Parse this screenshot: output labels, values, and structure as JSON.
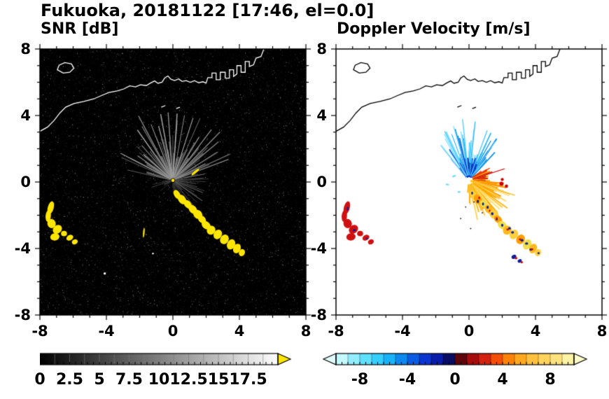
{
  "title": "Fukuoka, 20181122 [17:46, el=0.0]",
  "panels": {
    "snr_label": "SNR [dB]",
    "doppler_label": "Doppler Velocity [m/s]"
  },
  "chart_data": {
    "type": "heatmap",
    "plot_kind": "radar_ppi_pair",
    "title": "Fukuoka, 20181122 [17:46, el=0.0]",
    "radar_center": [
      0,
      0.1
    ],
    "subplots": [
      {
        "title": "SNR [dB]",
        "xlim": [
          -8,
          8
        ],
        "ylim": [
          -8,
          8
        ],
        "xticks": [
          -8,
          -4,
          0,
          4,
          8
        ],
        "yticks": [
          -8,
          -4,
          0,
          4,
          8
        ],
        "minor_tick_step": 1,
        "background": "#000000",
        "colorbar": {
          "range": [
            0,
            20
          ],
          "ticks": [
            0,
            2.5,
            5,
            7.5,
            10,
            12.5,
            15,
            17.5
          ],
          "palette": "grayscale",
          "over_arrow_color": "#ffe600"
        }
      },
      {
        "title": "Doppler Velocity [m/s]",
        "xlim": [
          -8,
          8
        ],
        "ylim": [
          -8,
          8
        ],
        "xticks": [
          -8,
          -4,
          0,
          4,
          8
        ],
        "yticks": [
          -8,
          -4,
          0,
          4,
          8
        ],
        "minor_tick_step": 1,
        "background": "#ffffff",
        "colorbar": {
          "range": [
            -10,
            10
          ],
          "ticks": [
            -8,
            -4,
            0,
            4,
            8
          ],
          "under_arrow_color": "#e2ffff",
          "over_arrow_color": "#ffffcc",
          "stops": [
            [
              -10,
              "#dcffff"
            ],
            [
              -9,
              "#aaf4ff"
            ],
            [
              -7.5,
              "#5fe0ff"
            ],
            [
              -6,
              "#22c4ff"
            ],
            [
              -5,
              "#0f9ff2"
            ],
            [
              -4,
              "#0b72e8"
            ],
            [
              -3,
              "#0a46dc"
            ],
            [
              -2,
              "#0a24c0"
            ],
            [
              -1,
              "#081694"
            ],
            [
              -0.3,
              "#0a0a50"
            ],
            [
              0.3,
              "#4c0508"
            ],
            [
              1,
              "#8c0a0a"
            ],
            [
              2,
              "#c01010"
            ],
            [
              3,
              "#e83410"
            ],
            [
              4,
              "#ff6a00"
            ],
            [
              5,
              "#ff9a10"
            ],
            [
              6,
              "#ffb62e"
            ],
            [
              7.5,
              "#ffd35c"
            ],
            [
              9,
              "#ffe98f"
            ],
            [
              10,
              "#fdfdba"
            ]
          ]
        }
      }
    ],
    "coastline": {
      "main": [
        [
          -8,
          3.05
        ],
        [
          -7.55,
          3.3
        ],
        [
          -7.15,
          3.7
        ],
        [
          -6.8,
          4.15
        ],
        [
          -6.45,
          4.5
        ],
        [
          -5.95,
          4.72
        ],
        [
          -5.35,
          4.85
        ],
        [
          -4.75,
          5.0
        ],
        [
          -4.3,
          5.2
        ],
        [
          -3.85,
          5.38
        ],
        [
          -3.35,
          5.48
        ],
        [
          -2.95,
          5.6
        ],
        [
          -2.6,
          5.78
        ],
        [
          -2.25,
          5.72
        ],
        [
          -1.95,
          5.85
        ],
        [
          -1.6,
          5.8
        ],
        [
          -1.35,
          5.95
        ],
        [
          -1.1,
          6.08
        ],
        [
          -0.9,
          5.94
        ],
        [
          -0.65,
          6.0
        ],
        [
          -0.5,
          6.25
        ],
        [
          -0.3,
          6.38
        ],
        [
          -0.12,
          6.18
        ],
        [
          0.1,
          6.1
        ],
        [
          0.35,
          6.2
        ],
        [
          0.55,
          6.05
        ],
        [
          0.8,
          6.1
        ],
        [
          1.05,
          6.0
        ],
        [
          1.3,
          6.1
        ],
        [
          1.55,
          5.97
        ],
        [
          1.8,
          6.03
        ],
        [
          2.0,
          5.95
        ],
        [
          2.1,
          6.28
        ],
        [
          2.35,
          6.28
        ],
        [
          2.35,
          6.55
        ],
        [
          2.6,
          6.55
        ],
        [
          2.6,
          6.15
        ],
        [
          2.85,
          6.15
        ],
        [
          2.85,
          6.6
        ],
        [
          3.15,
          6.6
        ],
        [
          3.15,
          6.25
        ],
        [
          3.4,
          6.25
        ],
        [
          3.4,
          6.75
        ],
        [
          3.65,
          6.75
        ],
        [
          3.65,
          6.35
        ],
        [
          3.85,
          6.5
        ],
        [
          3.85,
          7.0
        ],
        [
          4.1,
          7.0
        ],
        [
          4.1,
          6.6
        ],
        [
          4.35,
          6.6
        ],
        [
          4.35,
          7.25
        ],
        [
          4.6,
          7.25
        ],
        [
          4.6,
          6.95
        ],
        [
          4.85,
          7.05
        ],
        [
          5.0,
          7.45
        ],
        [
          5.3,
          7.55
        ],
        [
          5.45,
          7.95
        ],
        [
          5.55,
          8.1
        ]
      ],
      "island": [
        [
          -6.95,
          6.75
        ],
        [
          -6.6,
          6.55
        ],
        [
          -6.2,
          6.6
        ],
        [
          -5.95,
          6.85
        ],
        [
          -6.1,
          7.1
        ],
        [
          -6.5,
          7.18
        ],
        [
          -6.85,
          7.02
        ]
      ],
      "islets": [
        [
          [
            -0.7,
            4.5
          ],
          [
            -0.45,
            4.6
          ]
        ],
        [
          [
            0.2,
            4.42
          ],
          [
            0.42,
            4.5
          ]
        ]
      ]
    },
    "snr": {
      "echo_color": "#ffe600",
      "fans": [
        {
          "a0": -78,
          "a1": 78,
          "n": 46,
          "r0": 0.15,
          "rmin": 1.1,
          "rmax": 3.8,
          "g0": 60,
          "g1": 140,
          "w0": 0.8,
          "w1": 1.6
        },
        {
          "a0": -62,
          "a1": 62,
          "n": 20,
          "r0": 0.15,
          "rmin": 2.2,
          "rmax": 4.4,
          "g0": 110,
          "g1": 185,
          "w0": 0.9,
          "w1": 1.5
        },
        {
          "a0": 80,
          "a1": 140,
          "n": 14,
          "r0": 0.15,
          "rmin": 0.7,
          "rmax": 2.2,
          "g0": 55,
          "g1": 115,
          "w0": 0.8,
          "w1": 1.3
        },
        {
          "a0": -128,
          "a1": -96,
          "n": 6,
          "r0": 0.15,
          "rmin": 0.5,
          "rmax": 1.4,
          "g0": 45,
          "g1": 85,
          "w0": 0.8,
          "w1": 1.1
        },
        {
          "a0": 142,
          "a1": 186,
          "n": 7,
          "r0": 0.15,
          "rmin": 0.4,
          "rmax": 1.3,
          "g0": 45,
          "g1": 85,
          "w0": 0.8,
          "w1": 1.1
        }
      ],
      "arc_blobs": [
        {
          "x": 0.25,
          "y": -0.75,
          "rx": 0.18,
          "ry": 0.3,
          "rot": -30
        },
        {
          "x": 0.55,
          "y": -1.05,
          "rx": 0.22,
          "ry": 0.32,
          "rot": -35
        },
        {
          "x": 0.9,
          "y": -1.35,
          "rx": 0.2,
          "ry": 0.3,
          "rot": -40
        },
        {
          "x": 1.2,
          "y": -1.65,
          "rx": 0.22,
          "ry": 0.3,
          "rot": -40
        },
        {
          "x": 1.5,
          "y": -1.95,
          "rx": 0.25,
          "ry": 0.3,
          "rot": -45
        },
        {
          "x": 1.75,
          "y": -2.25,
          "rx": 0.2,
          "ry": 0.28,
          "rot": -45
        },
        {
          "x": 2.0,
          "y": -2.6,
          "rx": 0.22,
          "ry": 0.3,
          "rot": -50
        },
        {
          "x": 2.3,
          "y": -2.9,
          "rx": 0.28,
          "ry": 0.25,
          "rot": -55
        },
        {
          "x": 2.7,
          "y": -3.15,
          "rx": 0.3,
          "ry": 0.24,
          "rot": -60
        },
        {
          "x": 3.1,
          "y": -3.45,
          "rx": 0.3,
          "ry": 0.25,
          "rot": -60
        },
        {
          "x": 3.5,
          "y": -3.75,
          "rx": 0.32,
          "ry": 0.24,
          "rot": -65
        },
        {
          "x": 3.85,
          "y": -4.0,
          "rx": 0.3,
          "ry": 0.22,
          "rot": -65
        },
        {
          "x": 4.15,
          "y": -4.25,
          "rx": 0.22,
          "ry": 0.18,
          "rot": -65
        }
      ],
      "west_blobs": [
        {
          "x": -7.35,
          "y": -1.55,
          "rx": 0.18,
          "ry": 0.4,
          "rot": 15
        },
        {
          "x": -7.5,
          "y": -2.05,
          "rx": 0.16,
          "ry": 0.35,
          "rot": 5
        },
        {
          "x": -7.3,
          "y": -2.5,
          "rx": 0.25,
          "ry": 0.28,
          "rot": -20
        },
        {
          "x": -6.95,
          "y": -2.85,
          "rx": 0.3,
          "ry": 0.24,
          "rot": -40
        },
        {
          "x": -7.1,
          "y": -3.3,
          "rx": 0.28,
          "ry": 0.22,
          "rot": -10
        },
        {
          "x": -6.55,
          "y": -3.1,
          "rx": 0.18,
          "ry": 0.16,
          "rot": 0
        },
        {
          "x": -6.2,
          "y": -3.35,
          "rx": 0.22,
          "ry": 0.16,
          "rot": -30
        },
        {
          "x": -5.9,
          "y": -3.6,
          "rx": 0.18,
          "ry": 0.14,
          "rot": -30
        }
      ],
      "extra_blobs": [
        {
          "x": 1.35,
          "y": 0.6,
          "rx": 0.3,
          "ry": 0.07,
          "rot": -40
        },
        {
          "x": -1.75,
          "y": -3.05,
          "rx": 0.05,
          "ry": 0.3,
          "rot": 5
        }
      ],
      "white_specks": [
        {
          "x": -4.1,
          "y": -5.5,
          "rx": 0.07,
          "ry": 0.07,
          "rot": 0
        },
        {
          "x": -1.2,
          "y": -4.3,
          "rx": 0.05,
          "ry": 0.05,
          "rot": 0
        }
      ]
    },
    "doppler": {
      "fans": [
        {
          "a0": -42,
          "a1": 42,
          "n": 60,
          "r0": 0.25,
          "rmin": 0.7,
          "rmax": 3.3,
          "w0": 0.9,
          "w1": 2.0,
          "colors": [
            "#8ae6ff",
            "#55d4ff",
            "#2bb8f5",
            "#0f8fe8",
            "#0c58d8",
            "#7ad9ff"
          ]
        },
        {
          "a0": -28,
          "a1": 32,
          "n": 34,
          "r0": 0.2,
          "rmin": 0.3,
          "rmax": 1.5,
          "w0": 1.4,
          "w1": 2.8,
          "colors": [
            "#0a34c8",
            "#0a1fa0",
            "#1246e0",
            "#0c6ae0"
          ]
        },
        {
          "a0": 55,
          "a1": 98,
          "n": 26,
          "r0": 0.25,
          "rmin": 0.35,
          "rmax": 1.5,
          "w0": 1.4,
          "w1": 2.8,
          "colors": [
            "#ff8a00",
            "#ff6a00",
            "#f04000",
            "#d02000",
            "#ffae1e"
          ]
        },
        {
          "a0": 96,
          "a1": 168,
          "n": 64,
          "r0": 0.25,
          "rmin": 0.7,
          "rmax": 2.6,
          "w0": 1.3,
          "w1": 2.4,
          "colors": [
            "#ffd24d",
            "#ffc024",
            "#ffab00",
            "#ffe37a",
            "#ff9400"
          ]
        },
        {
          "a0": 150,
          "a1": 188,
          "n": 16,
          "r0": 0.25,
          "rmin": 0.4,
          "rmax": 1.5,
          "w0": 1.1,
          "w1": 1.8,
          "colors": [
            "#ffd86a",
            "#ffb000"
          ]
        }
      ],
      "long_streaks": [
        {
          "a": -6,
          "r": 3.7,
          "c": "#55ccff",
          "w": 1.4
        },
        {
          "a": 6,
          "r": 3.55,
          "c": "#2fb9ff",
          "w": 1.4
        },
        {
          "a": -16,
          "r": 3.4,
          "c": "#7adcff",
          "w": 1.2
        },
        {
          "a": 20,
          "r": 3.2,
          "c": "#49c6ff",
          "w": 1.3
        },
        {
          "a": -30,
          "r": 2.9,
          "c": "#8ae0ff",
          "w": 1.2
        },
        {
          "a": 34,
          "r": 2.8,
          "c": "#63d2ff",
          "w": 1.2
        },
        {
          "a": 72,
          "r": 2.25,
          "c": "#d42222",
          "w": 1.2
        },
        {
          "a": 108,
          "r": 2.9,
          "c": "#ffc63a",
          "w": 1.6
        },
        {
          "a": 126,
          "r": 2.85,
          "c": "#ffaa00",
          "w": 1.6
        },
        {
          "a": 142,
          "r": 2.5,
          "c": "#ffd24d",
          "w": 1.4
        }
      ],
      "arc_colors": [
        "#ffcf3c",
        "#ff9e00",
        "#f0de4a",
        "#ffb81e"
      ],
      "west_color": "#d01010",
      "speck_navy": "#0a1f9e",
      "speck_red": "#c01010",
      "red_cluster": [
        {
          "x": 1.95,
          "y": -0.1,
          "rx": 0.12,
          "ry": 0.12,
          "rot": 0
        },
        {
          "x": 2.25,
          "y": -0.25,
          "rx": 0.1,
          "ry": 0.1,
          "rot": 0
        },
        {
          "x": 2.0,
          "y": 0.15,
          "rx": 0.09,
          "ry": 0.09,
          "rot": 0
        }
      ],
      "navy_blobs": [
        {
          "x": 2.7,
          "y": -4.5,
          "rx": 0.15,
          "ry": 0.12,
          "rot": -30
        },
        {
          "x": 3.05,
          "y": -4.75,
          "rx": 0.13,
          "ry": 0.1,
          "rot": -30
        }
      ],
      "cyan_specks": [
        {
          "x": -0.9,
          "y": 0.35,
          "rx": 0.12,
          "ry": 0.05,
          "rot": -20
        },
        {
          "x": -1.3,
          "y": -0.15,
          "rx": 0.1,
          "ry": 0.05,
          "rot": 10
        },
        {
          "x": -0.6,
          "y": -0.6,
          "rx": 0.09,
          "ry": 0.05,
          "rot": 0
        }
      ],
      "dark_specks": [
        {
          "x": 0.3,
          "y": -1.2,
          "rx": 0.04,
          "ry": 0.04,
          "rot": 0
        },
        {
          "x": -0.2,
          "y": -1.5,
          "rx": 0.04,
          "ry": 0.04,
          "rot": 0
        },
        {
          "x": 0.8,
          "y": -1.85,
          "rx": 0.04,
          "ry": 0.04,
          "rot": 0
        },
        {
          "x": -0.5,
          "y": -2.2,
          "rx": 0.04,
          "ry": 0.04,
          "rot": 0
        },
        {
          "x": 0.1,
          "y": -2.8,
          "rx": 0.04,
          "ry": 0.04,
          "rot": 0
        }
      ]
    }
  }
}
